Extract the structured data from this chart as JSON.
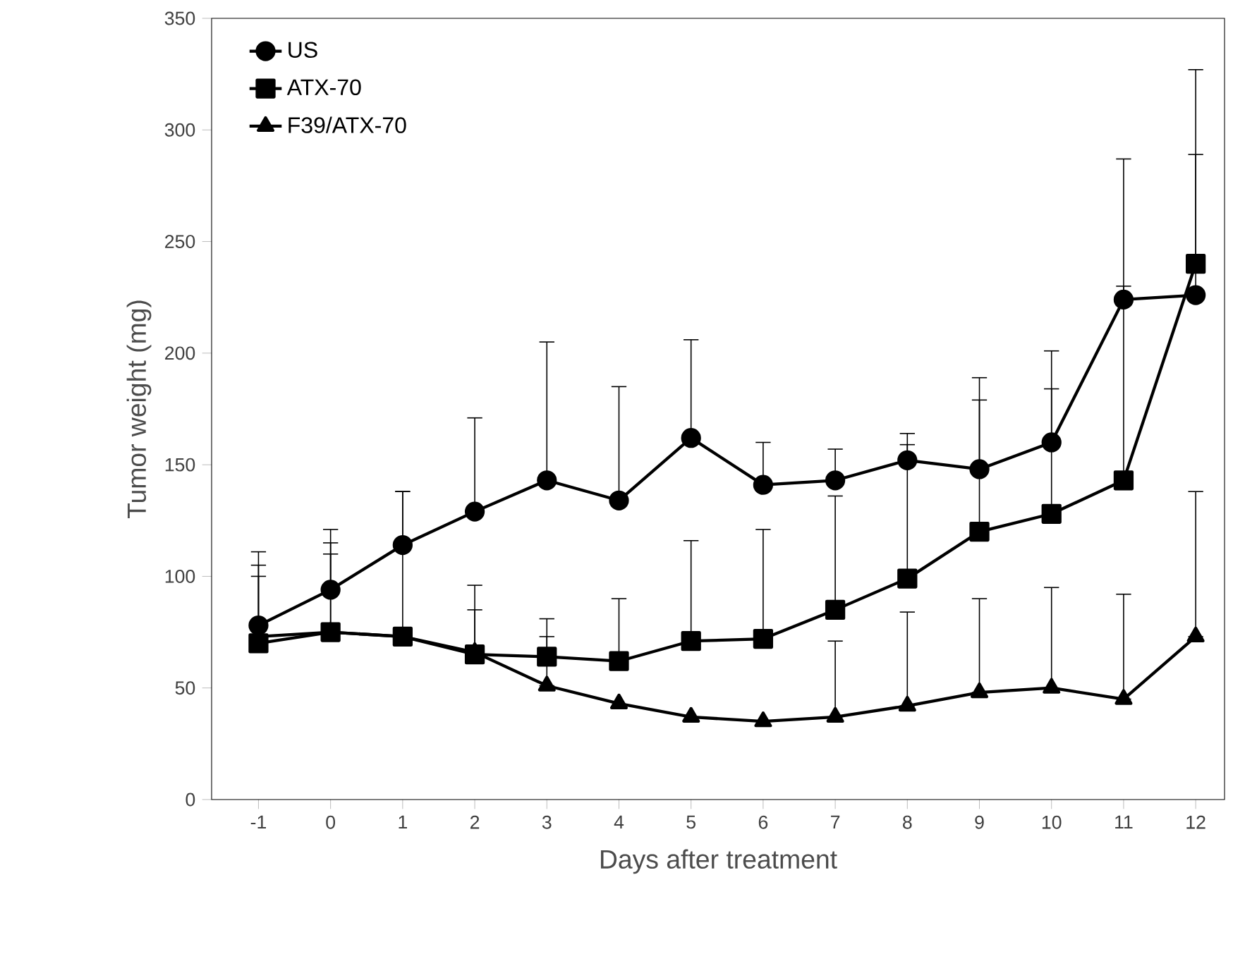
{
  "chart_data": {
    "type": "line",
    "xlabel": "Days after treatment",
    "ylabel": "Tumor weight (mg)",
    "x": [
      -1,
      0,
      1,
      2,
      3,
      4,
      5,
      6,
      7,
      8,
      9,
      10,
      11,
      12
    ],
    "xlim": [
      -1.65,
      12.4
    ],
    "xticks": [
      -1,
      0,
      1,
      2,
      3,
      4,
      5,
      6,
      7,
      8,
      9,
      10,
      11,
      12
    ],
    "ylim": [
      0,
      350
    ],
    "yticks": [
      0,
      50,
      100,
      150,
      200,
      250,
      300,
      350
    ],
    "grid": false,
    "legend": "top left",
    "line_style": "solid",
    "series": [
      {
        "name": "US",
        "color": "#000000",
        "marker": "circle",
        "values": [
          78,
          94,
          114,
          129,
          143,
          134,
          162,
          141,
          143,
          152,
          148,
          160,
          224,
          226
        ],
        "errors": [
          [
            78,
            111
          ],
          [
            94,
            121
          ],
          [
            114,
            138
          ],
          [
            129,
            171
          ],
          [
            143,
            205
          ],
          [
            134,
            185
          ],
          [
            162,
            206
          ],
          [
            141,
            160
          ],
          [
            143,
            157
          ],
          [
            152,
            164
          ],
          [
            148,
            189
          ],
          [
            160,
            201
          ],
          [
            224,
            287
          ],
          [
            226,
            289
          ]
        ]
      },
      {
        "name": "ATX-70",
        "color": "#000000",
        "marker": "square",
        "values": [
          70,
          75,
          73,
          65,
          64,
          62,
          71,
          72,
          85,
          99,
          120,
          128,
          143,
          240
        ],
        "errors": [
          [
            70,
            105
          ],
          [
            75,
            115
          ],
          [
            73,
            138
          ],
          [
            65,
            96
          ],
          [
            64,
            81
          ],
          [
            62,
            90
          ],
          [
            71,
            116
          ],
          [
            72,
            121
          ],
          [
            85,
            136
          ],
          [
            99,
            159
          ],
          [
            120,
            179
          ],
          [
            128,
            184
          ],
          [
            143,
            230
          ],
          [
            240,
            327
          ]
        ]
      },
      {
        "name": "F39/ATX-70",
        "color": "#000000",
        "marker": "triangle",
        "values": [
          73,
          75,
          73,
          66,
          51,
          43,
          37,
          35,
          37,
          42,
          48,
          50,
          45,
          73
        ],
        "errors": [
          [
            73,
            100
          ],
          [
            75,
            110
          ],
          null,
          [
            66,
            85
          ],
          [
            51,
            73
          ],
          null,
          null,
          null,
          [
            37,
            71
          ],
          [
            42,
            84
          ],
          [
            48,
            90
          ],
          [
            50,
            95
          ],
          [
            45,
            92
          ],
          [
            73,
            138
          ]
        ]
      }
    ]
  }
}
